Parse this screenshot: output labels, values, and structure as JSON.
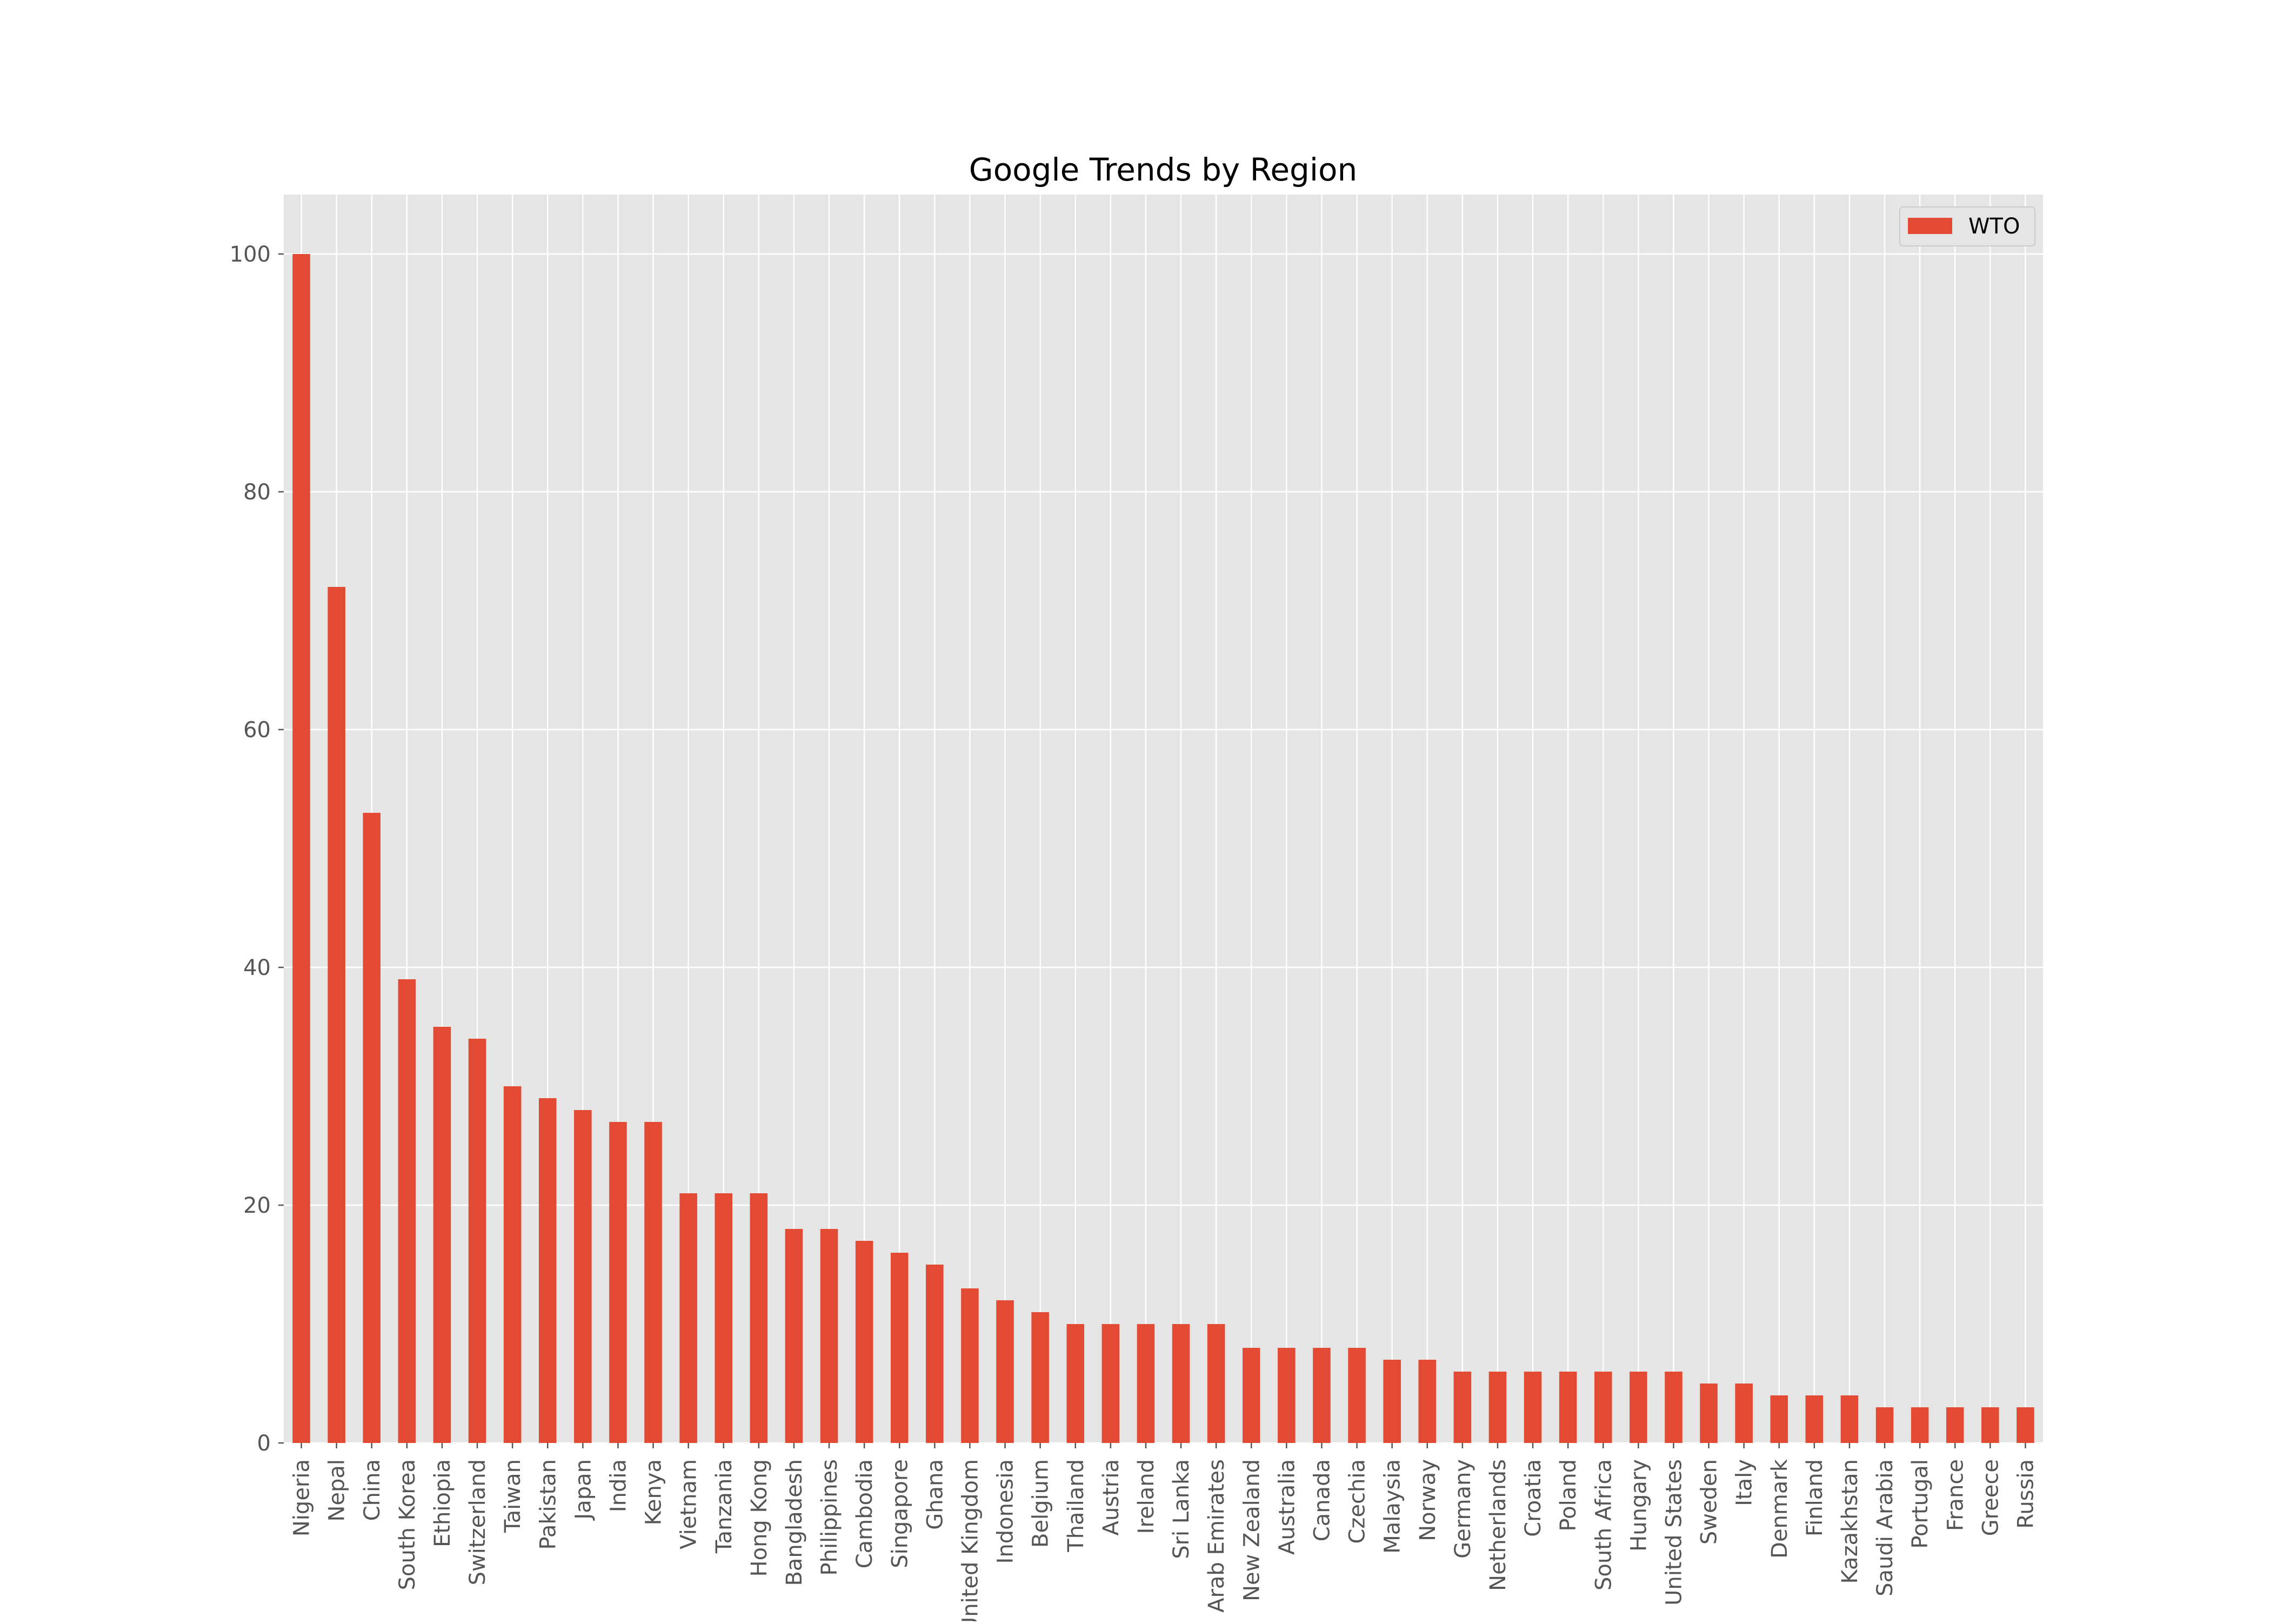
{
  "chart_data": {
    "type": "bar",
    "title": "Google Trends by Region",
    "xlabel": "",
    "ylabel": "",
    "ylim": [
      0,
      105
    ],
    "yticks": [
      0,
      20,
      40,
      60,
      80,
      100
    ],
    "grid": true,
    "legend": "upper-right",
    "bar_color": "#E24A33",
    "plot_background": "#E5E5E5",
    "categories": [
      "Nigeria",
      "Nepal",
      "China",
      "South Korea",
      "Ethiopia",
      "Switzerland",
      "Taiwan",
      "Pakistan",
      "Japan",
      "India",
      "Kenya",
      "Vietnam",
      "Tanzania",
      "Hong Kong",
      "Bangladesh",
      "Philippines",
      "Cambodia",
      "Singapore",
      "Ghana",
      "United Kingdom",
      "Indonesia",
      "Belgium",
      "Thailand",
      "Austria",
      "Ireland",
      "Sri Lanka",
      "United Arab Emirates",
      "New Zealand",
      "Australia",
      "Canada",
      "Czechia",
      "Malaysia",
      "Norway",
      "Germany",
      "Netherlands",
      "Croatia",
      "Poland",
      "South Africa",
      "Hungary",
      "United States",
      "Sweden",
      "Italy",
      "Denmark",
      "Finland",
      "Kazakhstan",
      "Saudi Arabia",
      "Portugal",
      "France",
      "Greece",
      "Russia"
    ],
    "series": [
      {
        "name": "WTO",
        "values": [
          100,
          72,
          53,
          39,
          35,
          34,
          30,
          29,
          28,
          27,
          27,
          21,
          21,
          21,
          18,
          18,
          17,
          16,
          15,
          13,
          12,
          11,
          10,
          10,
          10,
          10,
          10,
          8,
          8,
          8,
          8,
          7,
          7,
          6,
          6,
          6,
          6,
          6,
          6,
          6,
          5,
          5,
          4,
          4,
          4,
          3,
          3,
          3,
          3,
          3
        ]
      }
    ]
  }
}
